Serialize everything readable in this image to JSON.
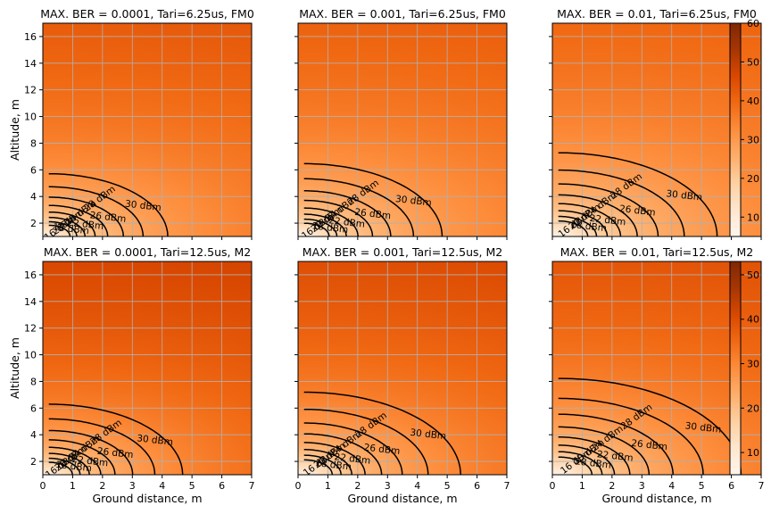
{
  "figure": {
    "xlabel": "Ground distance, m",
    "ylabel": "Altitude, m"
  },
  "colorbars": [
    {
      "row": 0,
      "range": [
        5,
        60
      ],
      "ticks": [
        10,
        20,
        30,
        40,
        50,
        60
      ]
    },
    {
      "row": 1,
      "range": [
        5,
        53
      ],
      "ticks": [
        10,
        20,
        30,
        40,
        50
      ]
    }
  ],
  "chart_data": [
    {
      "type": "heatmap",
      "title": "MAX. BER = 0.0001, Tari=6.25us, FM0",
      "xlabel": "",
      "ylabel": "Altitude, m",
      "xlim": [
        0,
        7
      ],
      "ylim": [
        1,
        17
      ],
      "xticks": [
        0,
        1,
        2,
        3,
        4,
        5,
        6,
        7
      ],
      "yticks": [
        2,
        4,
        6,
        8,
        10,
        12,
        14,
        16
      ],
      "grid": true,
      "colormap": "Oranges",
      "vrange": [
        5,
        60
      ],
      "base": 9.2,
      "rscale": 7.5,
      "contours": [
        {
          "level": 16,
          "label": "16 dBm"
        },
        {
          "level": 18,
          "label": "18 dBm"
        },
        {
          "level": 20,
          "label": "20 dBm"
        },
        {
          "level": 22,
          "label": "22 dBm"
        },
        {
          "level": 24,
          "label": "24 dBm"
        },
        {
          "level": 26,
          "label": "26 dBm"
        },
        {
          "level": 28,
          "label": "28 dBm"
        },
        {
          "level": 30,
          "label": "30 dBm"
        }
      ]
    },
    {
      "type": "heatmap",
      "title": "MAX. BER = 0.001, Tari=6.25us, FM0",
      "xlabel": "",
      "ylabel": "",
      "xlim": [
        0,
        7
      ],
      "ylim": [
        1,
        17
      ],
      "xticks": [
        0,
        1,
        2,
        3,
        4,
        5,
        6,
        7
      ],
      "yticks": [
        2,
        4,
        6,
        8,
        10,
        12,
        14,
        16
      ],
      "grid": true,
      "colormap": "Oranges",
      "vrange": [
        5,
        60
      ],
      "base": 8.4,
      "rscale": 6.7,
      "contours": [
        {
          "level": 16,
          "label": "16 dBm"
        },
        {
          "level": 18,
          "label": "18 dBm"
        },
        {
          "level": 20,
          "label": "20 dBm"
        },
        {
          "level": 22,
          "label": "22 dBm"
        },
        {
          "level": 24,
          "label": "24 dBm"
        },
        {
          "level": 26,
          "label": "26 dBm"
        },
        {
          "level": 28,
          "label": "28 dBm"
        },
        {
          "level": 30,
          "label": "30 dBm"
        }
      ]
    },
    {
      "type": "heatmap",
      "title": "MAX. BER = 0.01, Tari=6.25us, FM0",
      "xlabel": "",
      "ylabel": "",
      "xlim": [
        0,
        7
      ],
      "ylim": [
        1,
        17
      ],
      "xticks": [
        0,
        1,
        2,
        3,
        4,
        5,
        6,
        7
      ],
      "yticks": [
        2,
        4,
        6,
        8,
        10,
        12,
        14,
        16
      ],
      "grid": true,
      "colormap": "Oranges",
      "vrange": [
        5,
        60
      ],
      "base": 7.6,
      "rscale": 6.1,
      "contours": [
        {
          "level": 16,
          "label": "16 dBm"
        },
        {
          "level": 18,
          "label": "18 dBm"
        },
        {
          "level": 20,
          "label": "20 dBm"
        },
        {
          "level": 22,
          "label": "22 dBm"
        },
        {
          "level": 24,
          "label": "24 dBm"
        },
        {
          "level": 26,
          "label": "26 dBm"
        },
        {
          "level": 28,
          "label": "28 dBm"
        },
        {
          "level": 30,
          "label": "30 dBm"
        }
      ]
    },
    {
      "type": "heatmap",
      "title": "MAX. BER = 0.0001, Tari=12.5us, M2",
      "xlabel": "Ground distance, m",
      "ylabel": "Altitude, m",
      "xlim": [
        0,
        7
      ],
      "ylim": [
        1,
        17
      ],
      "xticks": [
        0,
        1,
        2,
        3,
        4,
        5,
        6,
        7
      ],
      "yticks": [
        2,
        4,
        6,
        8,
        10,
        12,
        14,
        16
      ],
      "grid": true,
      "colormap": "Oranges",
      "vrange": [
        5,
        53
      ],
      "base": 9.6,
      "rscale": 5.4,
      "contours": [
        {
          "level": 16,
          "label": "16 dBm"
        },
        {
          "level": 18,
          "label": "18 dBm"
        },
        {
          "level": 20,
          "label": "20 dBm"
        },
        {
          "level": 22,
          "label": "22 dBm"
        },
        {
          "level": 24,
          "label": "24 dBm"
        },
        {
          "level": 26,
          "label": "26 dBm"
        },
        {
          "level": 28,
          "label": "28 dBm"
        },
        {
          "level": 30,
          "label": "30 dBm"
        }
      ]
    },
    {
      "type": "heatmap",
      "title": "MAX. BER = 0.001, Tari=12.5us, M2",
      "xlabel": "Ground distance, m",
      "ylabel": "",
      "xlim": [
        0,
        7
      ],
      "ylim": [
        1,
        17
      ],
      "xticks": [
        0,
        1,
        2,
        3,
        4,
        5,
        6,
        7
      ],
      "yticks": [
        2,
        4,
        6,
        8,
        10,
        12,
        14,
        16
      ],
      "grid": true,
      "colormap": "Oranges",
      "vrange": [
        5,
        53
      ],
      "base": 8.8,
      "rscale": 4.75,
      "contours": [
        {
          "level": 16,
          "label": "16 dBm"
        },
        {
          "level": 18,
          "label": "18 dBm"
        },
        {
          "level": 20,
          "label": "20 dBm"
        },
        {
          "level": 22,
          "label": "22 dBm"
        },
        {
          "level": 24,
          "label": "24 dBm"
        },
        {
          "level": 26,
          "label": "26 dBm"
        },
        {
          "level": 28,
          "label": "28 dBm"
        },
        {
          "level": 30,
          "label": "30 dBm"
        }
      ]
    },
    {
      "type": "heatmap",
      "title": "MAX. BER = 0.01, Tari=12.5us, M2",
      "xlabel": "Ground distance, m",
      "ylabel": "",
      "xlim": [
        0,
        7
      ],
      "ylim": [
        1,
        17
      ],
      "xticks": [
        0,
        1,
        2,
        3,
        4,
        5,
        6,
        7
      ],
      "yticks": [
        2,
        4,
        6,
        8,
        10,
        12,
        14,
        16
      ],
      "grid": true,
      "colormap": "Oranges",
      "vrange": [
        5,
        53
      ],
      "base": 8.0,
      "rscale": 4.2,
      "contours": [
        {
          "level": 16,
          "label": "16 dBm"
        },
        {
          "level": 18,
          "label": "18 dBm"
        },
        {
          "level": 20,
          "label": "20 dBm"
        },
        {
          "level": 22,
          "label": "22 dBm"
        },
        {
          "level": 24,
          "label": "24 dBm"
        },
        {
          "level": 26,
          "label": "26 dBm"
        },
        {
          "level": 28,
          "label": "28 dBm"
        },
        {
          "level": 30,
          "label": "30 dBm"
        }
      ]
    }
  ]
}
